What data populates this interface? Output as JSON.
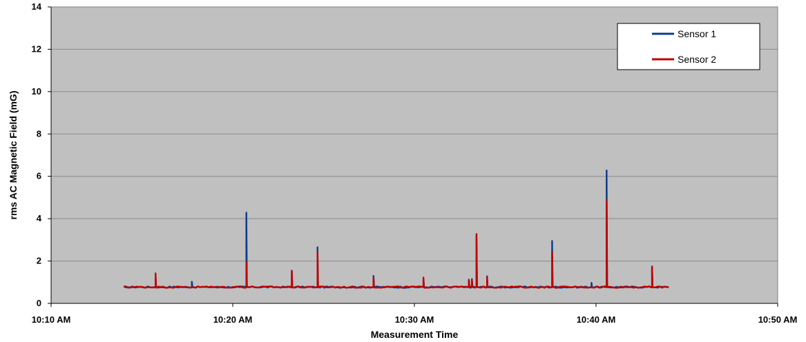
{
  "chart_data": {
    "type": "line",
    "title": "",
    "xlabel": "Measurement Time",
    "ylabel": "rms AC Magnetic  Field  (mG)",
    "ylim": [
      0,
      14
    ],
    "xlim": [
      "10:10",
      "10:50"
    ],
    "y_ticks": [
      "0",
      "2",
      "4",
      "6",
      "8",
      "10",
      "12",
      "14"
    ],
    "x_ticks": [
      "10:10 AM",
      "10:20 AM",
      "10:30 AM",
      "10:40 AM",
      "10:50 AM"
    ],
    "grid": true,
    "plot_background": "#c0c0c0",
    "legend_position": "top-right",
    "baseline": {
      "start": "10:14:00",
      "end": "10:44:06",
      "value": 0.77
    },
    "series": [
      {
        "name": "Sensor 1",
        "color": "#0b3c8c",
        "spikes": [
          {
            "time": "10:15:45",
            "value": 1.35
          },
          {
            "time": "10:17:45",
            "value": 1.02
          },
          {
            "time": "10:20:45",
            "value": 4.28
          },
          {
            "time": "10:23:15",
            "value": 1.5
          },
          {
            "time": "10:24:40",
            "value": 2.65
          },
          {
            "time": "10:27:45",
            "value": 1.3
          },
          {
            "time": "10:30:30",
            "value": 1.15
          },
          {
            "time": "10:33:00",
            "value": 1.12
          },
          {
            "time": "10:33:10",
            "value": 1.15
          },
          {
            "time": "10:33:25",
            "value": 3.2
          },
          {
            "time": "10:34:00",
            "value": 1.28
          },
          {
            "time": "10:37:35",
            "value": 2.95
          },
          {
            "time": "10:39:45",
            "value": 0.97
          },
          {
            "time": "10:40:35",
            "value": 6.28
          },
          {
            "time": "10:43:05",
            "value": 1.65
          }
        ]
      },
      {
        "name": "Sensor 2",
        "color": "#c00000",
        "spikes": [
          {
            "time": "10:15:45",
            "value": 1.42
          },
          {
            "time": "10:20:45",
            "value": 1.95
          },
          {
            "time": "10:23:15",
            "value": 1.55
          },
          {
            "time": "10:24:40",
            "value": 2.45
          },
          {
            "time": "10:27:45",
            "value": 1.2
          },
          {
            "time": "10:30:30",
            "value": 1.22
          },
          {
            "time": "10:33:00",
            "value": 1.08
          },
          {
            "time": "10:33:10",
            "value": 1.1
          },
          {
            "time": "10:33:25",
            "value": 3.28
          },
          {
            "time": "10:34:00",
            "value": 1.22
          },
          {
            "time": "10:37:35",
            "value": 2.4
          },
          {
            "time": "10:40:35",
            "value": 4.85
          },
          {
            "time": "10:43:05",
            "value": 1.75
          }
        ]
      }
    ]
  }
}
